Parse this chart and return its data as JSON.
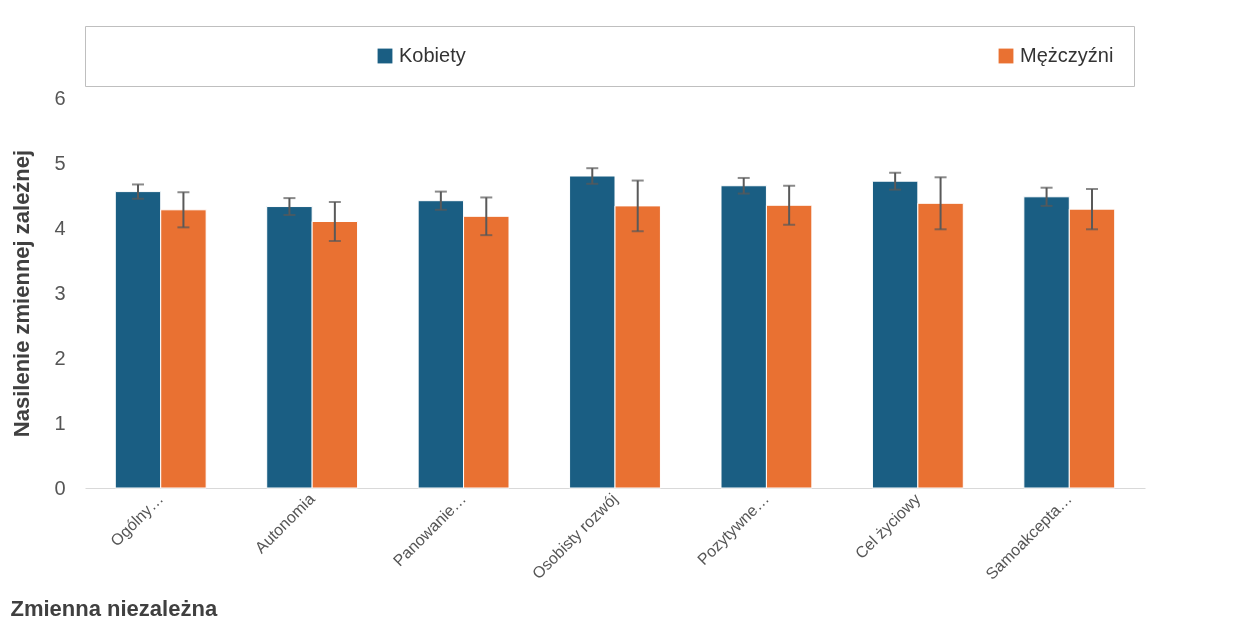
{
  "chart_data": {
    "type": "bar",
    "xlabel": "Zmienna niezależna",
    "ylabel": "Nasilenie zmiennej zależnej",
    "categories": [
      "Ogólny…",
      "Autonomia",
      "Panowanie…",
      "Osobisty rozwój",
      "Pozytywne…",
      "Cel życiowy",
      "Samoakcepta…"
    ],
    "series": [
      {
        "name": "Kobiety",
        "color": "#1a5e83",
        "values": [
          4.56,
          4.33,
          4.42,
          4.8,
          4.65,
          4.72,
          4.48
        ],
        "errors": [
          0.11,
          0.13,
          0.14,
          0.12,
          0.12,
          0.13,
          0.14
        ]
      },
      {
        "name": "Mężczyźni",
        "color": "#e97132",
        "values": [
          4.28,
          4.1,
          4.18,
          4.34,
          4.35,
          4.38,
          4.29
        ],
        "errors": [
          0.27,
          0.3,
          0.29,
          0.39,
          0.3,
          0.4,
          0.31
        ]
      }
    ],
    "ylim": [
      0,
      6
    ],
    "yticks": [
      0,
      1,
      2,
      3,
      4,
      5,
      6
    ],
    "grid": false,
    "legend": "top"
  }
}
